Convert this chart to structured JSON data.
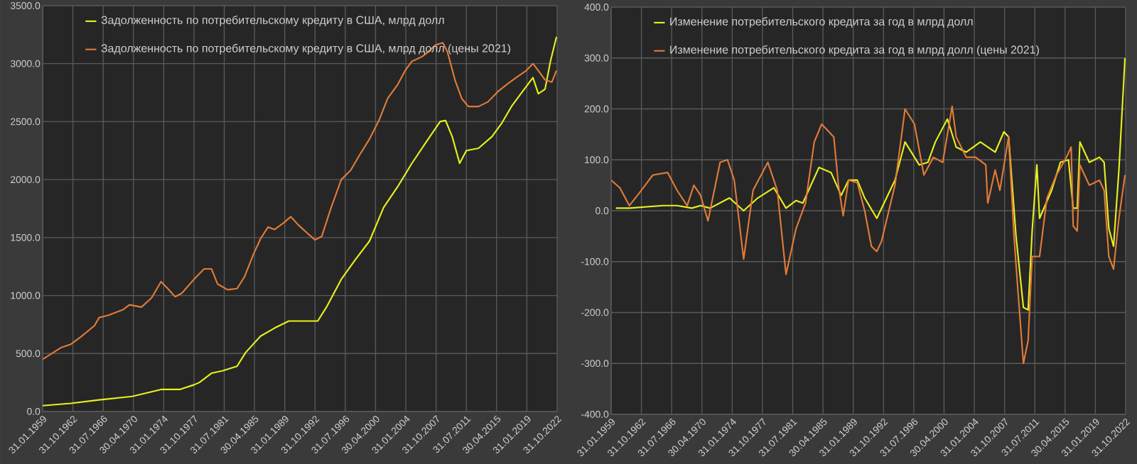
{
  "chart_data": [
    {
      "type": "line",
      "grid": true,
      "legend": "top left",
      "xlim": [
        "1959-01-31",
        "2022-10-31"
      ],
      "xticks": [
        {
          "value": "1959-01-31",
          "label": "31.01.1959"
        },
        {
          "value": "1962-10-31",
          "label": "31.10.1962"
        },
        {
          "value": "1966-07-31",
          "label": "31.07.1966"
        },
        {
          "value": "1970-04-30",
          "label": "30.04.1970"
        },
        {
          "value": "1974-01-31",
          "label": "31.01.1974"
        },
        {
          "value": "1977-10-31",
          "label": "31.10.1977"
        },
        {
          "value": "1981-07-31",
          "label": "31.07.1981"
        },
        {
          "value": "1985-04-30",
          "label": "30.04.1985"
        },
        {
          "value": "1989-01-31",
          "label": "31.01.1989"
        },
        {
          "value": "1992-10-31",
          "label": "31.10.1992"
        },
        {
          "value": "1996-07-31",
          "label": "31.07.1996"
        },
        {
          "value": "2000-04-30",
          "label": "30.04.2000"
        },
        {
          "value": "2004-01-31",
          "label": "31.01.2004"
        },
        {
          "value": "2007-10-31",
          "label": "31.10.2007"
        },
        {
          "value": "2011-07-31",
          "label": "31.07.2011"
        },
        {
          "value": "2015-04-30",
          "label": "30.04.2015"
        },
        {
          "value": "2019-01-31",
          "label": "31.01.2019"
        },
        {
          "value": "2022-10-31",
          "label": "31.10.2022"
        }
      ],
      "ylim": [
        0,
        3500
      ],
      "yticks": [
        {
          "value": 0,
          "label": "0.0"
        },
        {
          "value": 500,
          "label": "500.0"
        },
        {
          "value": 1000,
          "label": "1000.0"
        },
        {
          "value": 1500,
          "label": "1500.0"
        },
        {
          "value": 2000,
          "label": "2000.0"
        },
        {
          "value": 2500,
          "label": "2500.0"
        },
        {
          "value": 3000,
          "label": "3000.0"
        },
        {
          "value": 3500,
          "label": "3500.0"
        }
      ],
      "series": [
        {
          "name": "Задолженность по потребительскому кредиту в США, млрд долл",
          "color": "#e6f01e",
          "x": [
            "1959-02",
            "1962-08",
            "1966-02",
            "1970-03",
            "1973-10",
            "1976-02",
            "1977-11",
            "1978-07",
            "1980-01",
            "1981-05",
            "1983-03",
            "1984-04",
            "1986-02",
            "1987-11",
            "1989-08",
            "1991-05",
            "1993-03",
            "1994-04",
            "1996-02",
            "1997-11",
            "1999-08",
            "2001-05",
            "2003-02",
            "2004-11",
            "2006-09",
            "2008-05",
            "2009-01",
            "2009-11",
            "2010-10",
            "2011-08",
            "2013-02",
            "2014-10",
            "2016-01",
            "2017-03",
            "2018-05",
            "2019-11",
            "2020-07",
            "2021-05",
            "2022-01",
            "2022-10"
          ],
          "values": [
            50,
            70,
            100,
            130,
            190,
            190,
            230,
            250,
            330,
            350,
            390,
            510,
            650,
            720,
            780,
            780,
            780,
            900,
            1140,
            1310,
            1470,
            1760,
            1940,
            2140,
            2330,
            2500,
            2510,
            2370,
            2140,
            2250,
            2270,
            2370,
            2490,
            2630,
            2740,
            2880,
            2740,
            2780,
            3020,
            3230
          ]
        },
        {
          "name": "Задолженность по потребительскому кредиту в США, млрд долл (цены 2021)",
          "color": "#e07b39",
          "x": [
            "1959-02",
            "1961-05",
            "1962-08",
            "1963-10",
            "1965-07",
            "1966-02",
            "1967-04",
            "1969-02",
            "1969-11",
            "1971-05",
            "1972-08",
            "1973-10",
            "1974-08",
            "1975-07",
            "1976-05",
            "1977-11",
            "1979-02",
            "1980-01",
            "1980-10",
            "1982-01",
            "1983-03",
            "1984-02",
            "1985-03",
            "1986-02",
            "1987-01",
            "1987-11",
            "1989-01",
            "1989-11",
            "1990-10",
            "1992-01",
            "1992-11",
            "1993-09",
            "1994-11",
            "1996-02",
            "1997-04",
            "1998-05",
            "1999-08",
            "2000-10",
            "2001-11",
            "2003-02",
            "2004-01",
            "2004-11",
            "2006-02",
            "2006-11",
            "2007-10",
            "2008-09",
            "2009-04",
            "2010-03",
            "2011-01",
            "2011-11",
            "2013-02",
            "2014-04",
            "2015-07",
            "2016-08",
            "2017-10",
            "2019-01",
            "2019-11",
            "2020-07",
            "2021-05",
            "2022-03",
            "2022-10"
          ],
          "values": [
            450,
            550,
            580,
            640,
            740,
            810,
            830,
            880,
            920,
            900,
            980,
            1120,
            1060,
            990,
            1020,
            1140,
            1230,
            1230,
            1100,
            1050,
            1060,
            1160,
            1350,
            1490,
            1590,
            1570,
            1630,
            1680,
            1610,
            1530,
            1480,
            1510,
            1760,
            2000,
            2080,
            2210,
            2350,
            2510,
            2700,
            2820,
            2940,
            3020,
            3060,
            3100,
            3160,
            3180,
            3100,
            2860,
            2700,
            2630,
            2630,
            2670,
            2760,
            2820,
            2880,
            2940,
            3000,
            2940,
            2860,
            2840,
            2940
          ]
        }
      ]
    },
    {
      "type": "line",
      "grid": true,
      "legend": "top left",
      "xlim": [
        "1959-01-31",
        "2022-10-31"
      ],
      "xticks": [
        {
          "value": "1959-01-31",
          "label": "31.01.1959"
        },
        {
          "value": "1962-10-31",
          "label": "31.10.1962"
        },
        {
          "value": "1966-07-31",
          "label": "31.07.1966"
        },
        {
          "value": "1970-04-30",
          "label": "30.04.1970"
        },
        {
          "value": "1974-01-31",
          "label": "31.01.1974"
        },
        {
          "value": "1977-10-31",
          "label": "31.10.1977"
        },
        {
          "value": "1981-07-31",
          "label": "31.07.1981"
        },
        {
          "value": "1985-04-30",
          "label": "30.04.1985"
        },
        {
          "value": "1989-01-31",
          "label": "31.01.1989"
        },
        {
          "value": "1992-10-31",
          "label": "31.10.1992"
        },
        {
          "value": "1996-07-31",
          "label": "31.07.1996"
        },
        {
          "value": "2000-04-30",
          "label": "30.04.2000"
        },
        {
          "value": "2004-01-31",
          "label": "31.01.2004"
        },
        {
          "value": "2007-10-31",
          "label": "31.10.2007"
        },
        {
          "value": "2011-07-31",
          "label": "31.07.2011"
        },
        {
          "value": "2015-04-30",
          "label": "30.04.2015"
        },
        {
          "value": "2019-01-31",
          "label": "31.01.2019"
        },
        {
          "value": "2022-10-31",
          "label": "31.10.2022"
        }
      ],
      "ylim": [
        -400,
        400
      ],
      "yticks": [
        {
          "value": -400,
          "label": "-400.0"
        },
        {
          "value": -300,
          "label": "-300.0"
        },
        {
          "value": -200,
          "label": "-200.0"
        },
        {
          "value": -100,
          "label": "-100.0"
        },
        {
          "value": 0,
          "label": "0.0"
        },
        {
          "value": 100,
          "label": "100.0"
        },
        {
          "value": 200,
          "label": "200.0"
        },
        {
          "value": 300,
          "label": "300.0"
        },
        {
          "value": 400,
          "label": "400.0"
        }
      ],
      "series": [
        {
          "name": "Изменение потребительского кредита за год в млрд долл",
          "color": "#e6f01e",
          "x": [
            "1959-09",
            "1961-05",
            "1965-07",
            "1967-04",
            "1969-02",
            "1970-03",
            "1971-05",
            "1973-10",
            "1975-07",
            "1977-04",
            "1979-04",
            "1980-10",
            "1982-01",
            "1982-11",
            "1984-11",
            "1986-05",
            "1987-08",
            "1988-07",
            "1989-08",
            "1990-07",
            "1992-01",
            "1994-04",
            "1995-07",
            "1997-04",
            "1998-05",
            "1999-04",
            "2000-10",
            "2001-11",
            "2003-02",
            "2004-11",
            "2006-09",
            "2007-10",
            "2008-05",
            "2009-04",
            "2010-03",
            "2010-10",
            "2011-04",
            "2011-11",
            "2012-03",
            "2013-09",
            "2014-10",
            "2015-10",
            "2016-05",
            "2016-11",
            "2017-03",
            "2018-05",
            "2019-08",
            "2020-03",
            "2020-10",
            "2021-05",
            "2022-01",
            "2022-10"
          ],
          "values": [
            5,
            5,
            10,
            10,
            5,
            10,
            5,
            25,
            0,
            25,
            45,
            5,
            20,
            15,
            85,
            75,
            30,
            60,
            60,
            25,
            -15,
            60,
            135,
            90,
            95,
            135,
            180,
            125,
            115,
            135,
            115,
            155,
            145,
            -50,
            -190,
            -195,
            -40,
            90,
            -15,
            40,
            95,
            100,
            5,
            5,
            135,
            95,
            105,
            95,
            -35,
            -70,
            80,
            300
          ]
        },
        {
          "name": "Изменение потребительского кредита за год в млрд долл (цены 2021)",
          "color": "#e07b39",
          "x": [
            "1959-02",
            "1960-03",
            "1961-05",
            "1962-08",
            "1964-04",
            "1966-02",
            "1967-04",
            "1968-07",
            "1969-05",
            "1970-03",
            "1971-02",
            "1972-08",
            "1973-07",
            "1974-05",
            "1975-07",
            "1976-09",
            "1978-07",
            "1979-09",
            "1980-10",
            "1982-01",
            "1983-03",
            "1984-04",
            "1985-03",
            "1986-09",
            "1987-04",
            "1987-11",
            "1988-07",
            "1989-08",
            "1990-07",
            "1991-05",
            "1992-01",
            "1992-08",
            "1994-04",
            "1995-07",
            "1996-09",
            "1997-11",
            "1999-01",
            "2000-03",
            "2001-05",
            "2001-11",
            "2003-02",
            "2004-04",
            "2005-07",
            "2005-10",
            "2006-09",
            "2007-04",
            "2008-05",
            "2009-01",
            "2009-07",
            "2010-03",
            "2010-10",
            "2011-04",
            "2012-03",
            "2013-02",
            "2014-04",
            "2015-07",
            "2016-02",
            "2016-05",
            "2016-11",
            "2017-03",
            "2018-05",
            "2019-08",
            "2020-03",
            "2020-10",
            "2021-05",
            "2022-01",
            "2022-10"
          ],
          "values": [
            60,
            45,
            10,
            35,
            70,
            75,
            40,
            10,
            50,
            30,
            -20,
            95,
            100,
            60,
            -95,
            40,
            95,
            40,
            -125,
            -35,
            15,
            135,
            170,
            145,
            50,
            -10,
            60,
            55,
            0,
            -70,
            -80,
            -60,
            50,
            200,
            170,
            70,
            105,
            95,
            205,
            145,
            105,
            105,
            90,
            15,
            80,
            40,
            145,
            -50,
            -160,
            -300,
            -255,
            -90,
            -90,
            25,
            70,
            105,
            125,
            -30,
            -40,
            90,
            50,
            60,
            40,
            -90,
            -115,
            -15,
            70
          ]
        }
      ]
    }
  ]
}
